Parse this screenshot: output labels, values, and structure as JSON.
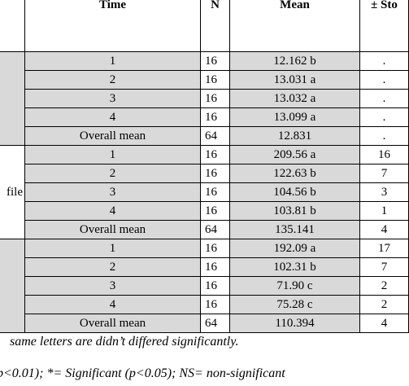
{
  "header": {
    "time": "Time",
    "n": "N",
    "mean": "Mean",
    "sd": "± Sto"
  },
  "groups": [
    {
      "label": "",
      "rows": [
        {
          "time": "1",
          "n": "16",
          "mean": "12.162 b",
          "sd": "."
        },
        {
          "time": "2",
          "n": "16",
          "mean": "13.031 a",
          "sd": "."
        },
        {
          "time": "3",
          "n": "16",
          "mean": "13.032 a",
          "sd": "."
        },
        {
          "time": "4",
          "n": "16",
          "mean": "13.099 a",
          "sd": "."
        },
        {
          "time": "Overall mean",
          "n": "64",
          "mean": "12.831",
          "sd": "."
        }
      ]
    },
    {
      "label": "file",
      "rows": [
        {
          "time": "1",
          "n": "16",
          "mean": "209.56 a",
          "sd": "16"
        },
        {
          "time": "2",
          "n": "16",
          "mean": "122.63 b",
          "sd": "7"
        },
        {
          "time": "3",
          "n": "16",
          "mean": "104.56 b",
          "sd": "3"
        },
        {
          "time": "4",
          "n": "16",
          "mean": "103.81 b",
          "sd": "1"
        },
        {
          "time": "Overall mean",
          "n": "64",
          "mean": "135.141",
          "sd": "4"
        }
      ]
    },
    {
      "label": "",
      "rows": [
        {
          "time": "1",
          "n": "16",
          "mean": "192.09 a",
          "sd": "17"
        },
        {
          "time": "2",
          "n": "16",
          "mean": "102.31 b",
          "sd": "7"
        },
        {
          "time": "3",
          "n": "16",
          "mean": "71.90 c",
          "sd": "2"
        },
        {
          "time": "4",
          "n": "16",
          "mean": "75.28 c",
          "sd": "2"
        },
        {
          "time": "Overall mean",
          "n": "64",
          "mean": "110.394",
          "sd": "4"
        }
      ]
    }
  ],
  "notes": {
    "line1": "same letters are didn’t differed significantly.",
    "line2": "p<0.01); *= Significant (p<0.05); NS= non-significant"
  }
}
